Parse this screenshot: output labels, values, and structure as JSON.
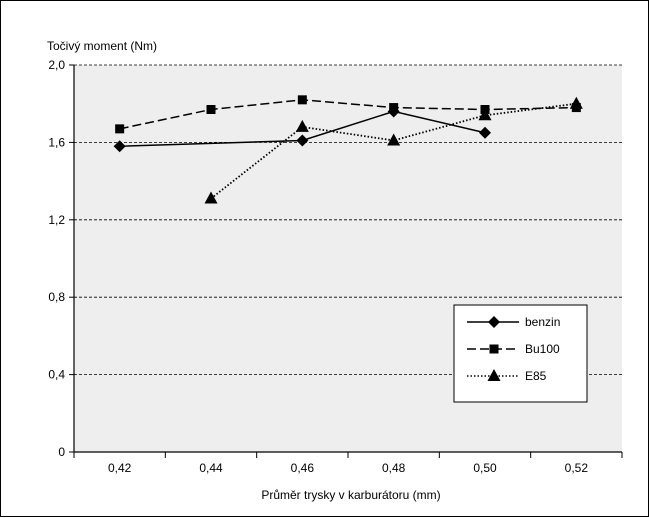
{
  "chart_data": {
    "type": "line",
    "title": "Točivý moment (Nm)",
    "xlabel": "Průměr trysky v karburátoru (mm)",
    "ylabel": "",
    "ylim": [
      0,
      2.0
    ],
    "xlim": [
      0.41,
      0.53
    ],
    "y_ticks": [
      "0",
      "0,4",
      "0,8",
      "1,2",
      "1,6",
      "2,0"
    ],
    "x_ticks": [
      "0,42",
      "0,44",
      "0,46",
      "0,48",
      "0,50",
      "0,52"
    ],
    "grid": "horizontal dashed",
    "legend_position": "bottom-right",
    "plot_background": "#eeeeee",
    "series": [
      {
        "name": "benzin",
        "line_style": "solid",
        "marker": "diamond",
        "color": "#000000",
        "points": [
          [
            0.42,
            1.58
          ],
          [
            0.46,
            1.61
          ],
          [
            0.48,
            1.76
          ],
          [
            0.5,
            1.65
          ]
        ]
      },
      {
        "name": "Bu100",
        "line_style": "dashed",
        "marker": "square",
        "color": "#000000",
        "points": [
          [
            0.42,
            1.67
          ],
          [
            0.44,
            1.77
          ],
          [
            0.46,
            1.82
          ],
          [
            0.48,
            1.78
          ],
          [
            0.5,
            1.77
          ],
          [
            0.52,
            1.78
          ]
        ]
      },
      {
        "name": "E85",
        "line_style": "dotted",
        "marker": "triangle",
        "color": "#000000",
        "points": [
          [
            0.44,
            1.31
          ],
          [
            0.46,
            1.68
          ],
          [
            0.48,
            1.61
          ],
          [
            0.5,
            1.74
          ],
          [
            0.52,
            1.8
          ]
        ]
      }
    ]
  }
}
